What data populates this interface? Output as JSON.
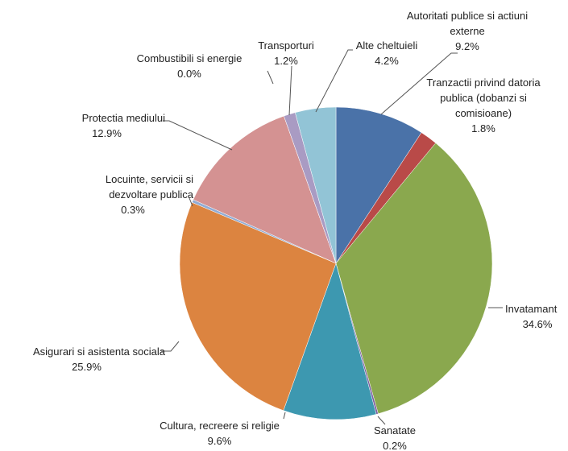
{
  "chart_data": {
    "type": "pie",
    "categories": [
      "Autoritati publice si actiuni externe",
      "Tranzactii privind datoria publica (dobanzi si comisioane)",
      "Invatamant",
      "Sanatate",
      "Cultura, recreere si religie",
      "Asigurari si asistenta sociala",
      "Locuinte, servicii si dezvoltare publica",
      "Protectia mediului",
      "Combustibili si energie",
      "Transporturi",
      "Alte cheltuieli"
    ],
    "values": [
      9.2,
      1.8,
      34.6,
      0.2,
      9.6,
      25.9,
      0.3,
      12.9,
      0.0,
      1.2,
      4.2
    ],
    "value_labels": [
      "9.2%",
      "1.8%",
      "34.6%",
      "0.2%",
      "9.6%",
      "25.9%",
      "0.3%",
      "12.9%",
      "0.0%",
      "1.2%",
      "4.2%"
    ],
    "colors": [
      "#4a72a8",
      "#b94a48",
      "#8aa84e",
      "#7c5fa0",
      "#3d98b0",
      "#dc8440",
      "#92acd4",
      "#d49292",
      "#b3c98f",
      "#a99bc3",
      "#92c4d6"
    ]
  }
}
